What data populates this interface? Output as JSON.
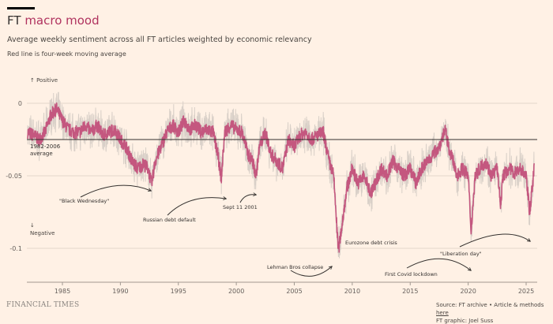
{
  "header": {
    "title_prefix": "FT",
    "title_highlight": "macro mood",
    "subtitle": "Average weekly sentiment across all FT articles weighted by economic relevancy",
    "note": "Red line is four-week moving average"
  },
  "footer": {
    "logo": "FINANCIAL TIMES",
    "source": "Source: FT archive • Article & methods ",
    "source_link": "here",
    "credit": "FT graphic: Joel Suss"
  },
  "chart_data": {
    "type": "line",
    "title": "FT macro mood",
    "xlabel": "",
    "ylabel": "",
    "xlim": [
      1982,
      2025.8
    ],
    "ylim": [
      -0.11,
      0.005
    ],
    "xticks": [
      "1985",
      "1990",
      "1995",
      "2000",
      "2005",
      "2010",
      "2015",
      "2020",
      "2025"
    ],
    "yticks": [
      {
        "value": 0,
        "label": "0"
      },
      {
        "value": -0.05,
        "label": "-0.05"
      },
      {
        "value": -0.1,
        "label": "-0.1"
      }
    ],
    "y_direction_labels": {
      "positive": "↑ Positive",
      "negative_arrow": "↓",
      "negative": "Negative"
    },
    "reference_line": {
      "value": -0.025,
      "label_line1": "1982-2006",
      "label_line2": "average"
    },
    "colors": {
      "moving_average": "#c4577f",
      "weekly": "#d9d0c8",
      "reference": "#33302e"
    },
    "series": [
      {
        "name": "Four-week moving average",
        "x": [
          1982,
          1982.5,
          1983,
          1983.5,
          1984,
          1984.5,
          1985,
          1985.5,
          1986,
          1986.5,
          1987,
          1987.5,
          1988,
          1988.5,
          1989,
          1989.5,
          1990,
          1990.5,
          1991,
          1991.5,
          1992,
          1992.4,
          1992.7,
          1993,
          1993.5,
          1994,
          1994.5,
          1995,
          1995.5,
          1996,
          1996.5,
          1997,
          1997.5,
          1998,
          1998.4,
          1998.7,
          1999,
          1999.5,
          2000,
          2000.5,
          2001,
          2001.4,
          2001.7,
          2002,
          2002.5,
          2003,
          2003.5,
          2004,
          2004.5,
          2005,
          2005.5,
          2006,
          2006.5,
          2007,
          2007.5,
          2008,
          2008.4,
          2008.8,
          2009.1,
          2009.5,
          2010,
          2010.5,
          2011,
          2011.6,
          2012,
          2012.5,
          2013,
          2013.5,
          2014,
          2014.5,
          2015,
          2015.5,
          2016,
          2016.5,
          2017,
          2017.5,
          2018,
          2018.3,
          2018.7,
          2019,
          2019.5,
          2020,
          2020.25,
          2020.6,
          2021,
          2021.5,
          2022,
          2022.5,
          2022.8,
          2023,
          2023.5,
          2024,
          2024.5,
          2025,
          2025.3,
          2025.7
        ],
        "values": [
          -0.02,
          -0.022,
          -0.025,
          -0.02,
          -0.008,
          -0.004,
          -0.012,
          -0.018,
          -0.02,
          -0.02,
          -0.015,
          -0.02,
          -0.015,
          -0.022,
          -0.02,
          -0.018,
          -0.025,
          -0.03,
          -0.04,
          -0.045,
          -0.042,
          -0.045,
          -0.056,
          -0.04,
          -0.03,
          -0.02,
          -0.015,
          -0.02,
          -0.012,
          -0.018,
          -0.015,
          -0.02,
          -0.018,
          -0.02,
          -0.035,
          -0.052,
          -0.02,
          -0.015,
          -0.018,
          -0.02,
          -0.035,
          -0.04,
          -0.05,
          -0.03,
          -0.02,
          -0.035,
          -0.04,
          -0.045,
          -0.025,
          -0.03,
          -0.022,
          -0.02,
          -0.025,
          -0.022,
          -0.02,
          -0.04,
          -0.05,
          -0.102,
          -0.085,
          -0.06,
          -0.045,
          -0.055,
          -0.05,
          -0.062,
          -0.055,
          -0.045,
          -0.05,
          -0.04,
          -0.045,
          -0.05,
          -0.045,
          -0.055,
          -0.045,
          -0.04,
          -0.035,
          -0.03,
          -0.018,
          -0.03,
          -0.04,
          -0.05,
          -0.045,
          -0.05,
          -0.088,
          -0.05,
          -0.045,
          -0.04,
          -0.05,
          -0.045,
          -0.07,
          -0.05,
          -0.045,
          -0.048,
          -0.045,
          -0.05,
          -0.075,
          -0.045
        ]
      }
    ],
    "annotations": [
      {
        "text": "\"Black Wednesday\"",
        "x": 1992.7,
        "y": -0.058
      },
      {
        "text": "Russian debt default",
        "x": 1998.7,
        "y": -0.062
      },
      {
        "text": "Sept 11 2001",
        "x": 2001.7,
        "y": -0.062
      },
      {
        "text": "Eurozone debt crisis",
        "x": 2010.1,
        "y": -0.097
      },
      {
        "text": "Lehman Bros collapse",
        "x": 2008.8,
        "y": -0.107
      },
      {
        "text": "First Covid lockdown",
        "x": 2020.3,
        "y": -0.118
      },
      {
        "text": "\"Liberation day\"",
        "x": 2025.3,
        "y": -0.095
      }
    ]
  }
}
